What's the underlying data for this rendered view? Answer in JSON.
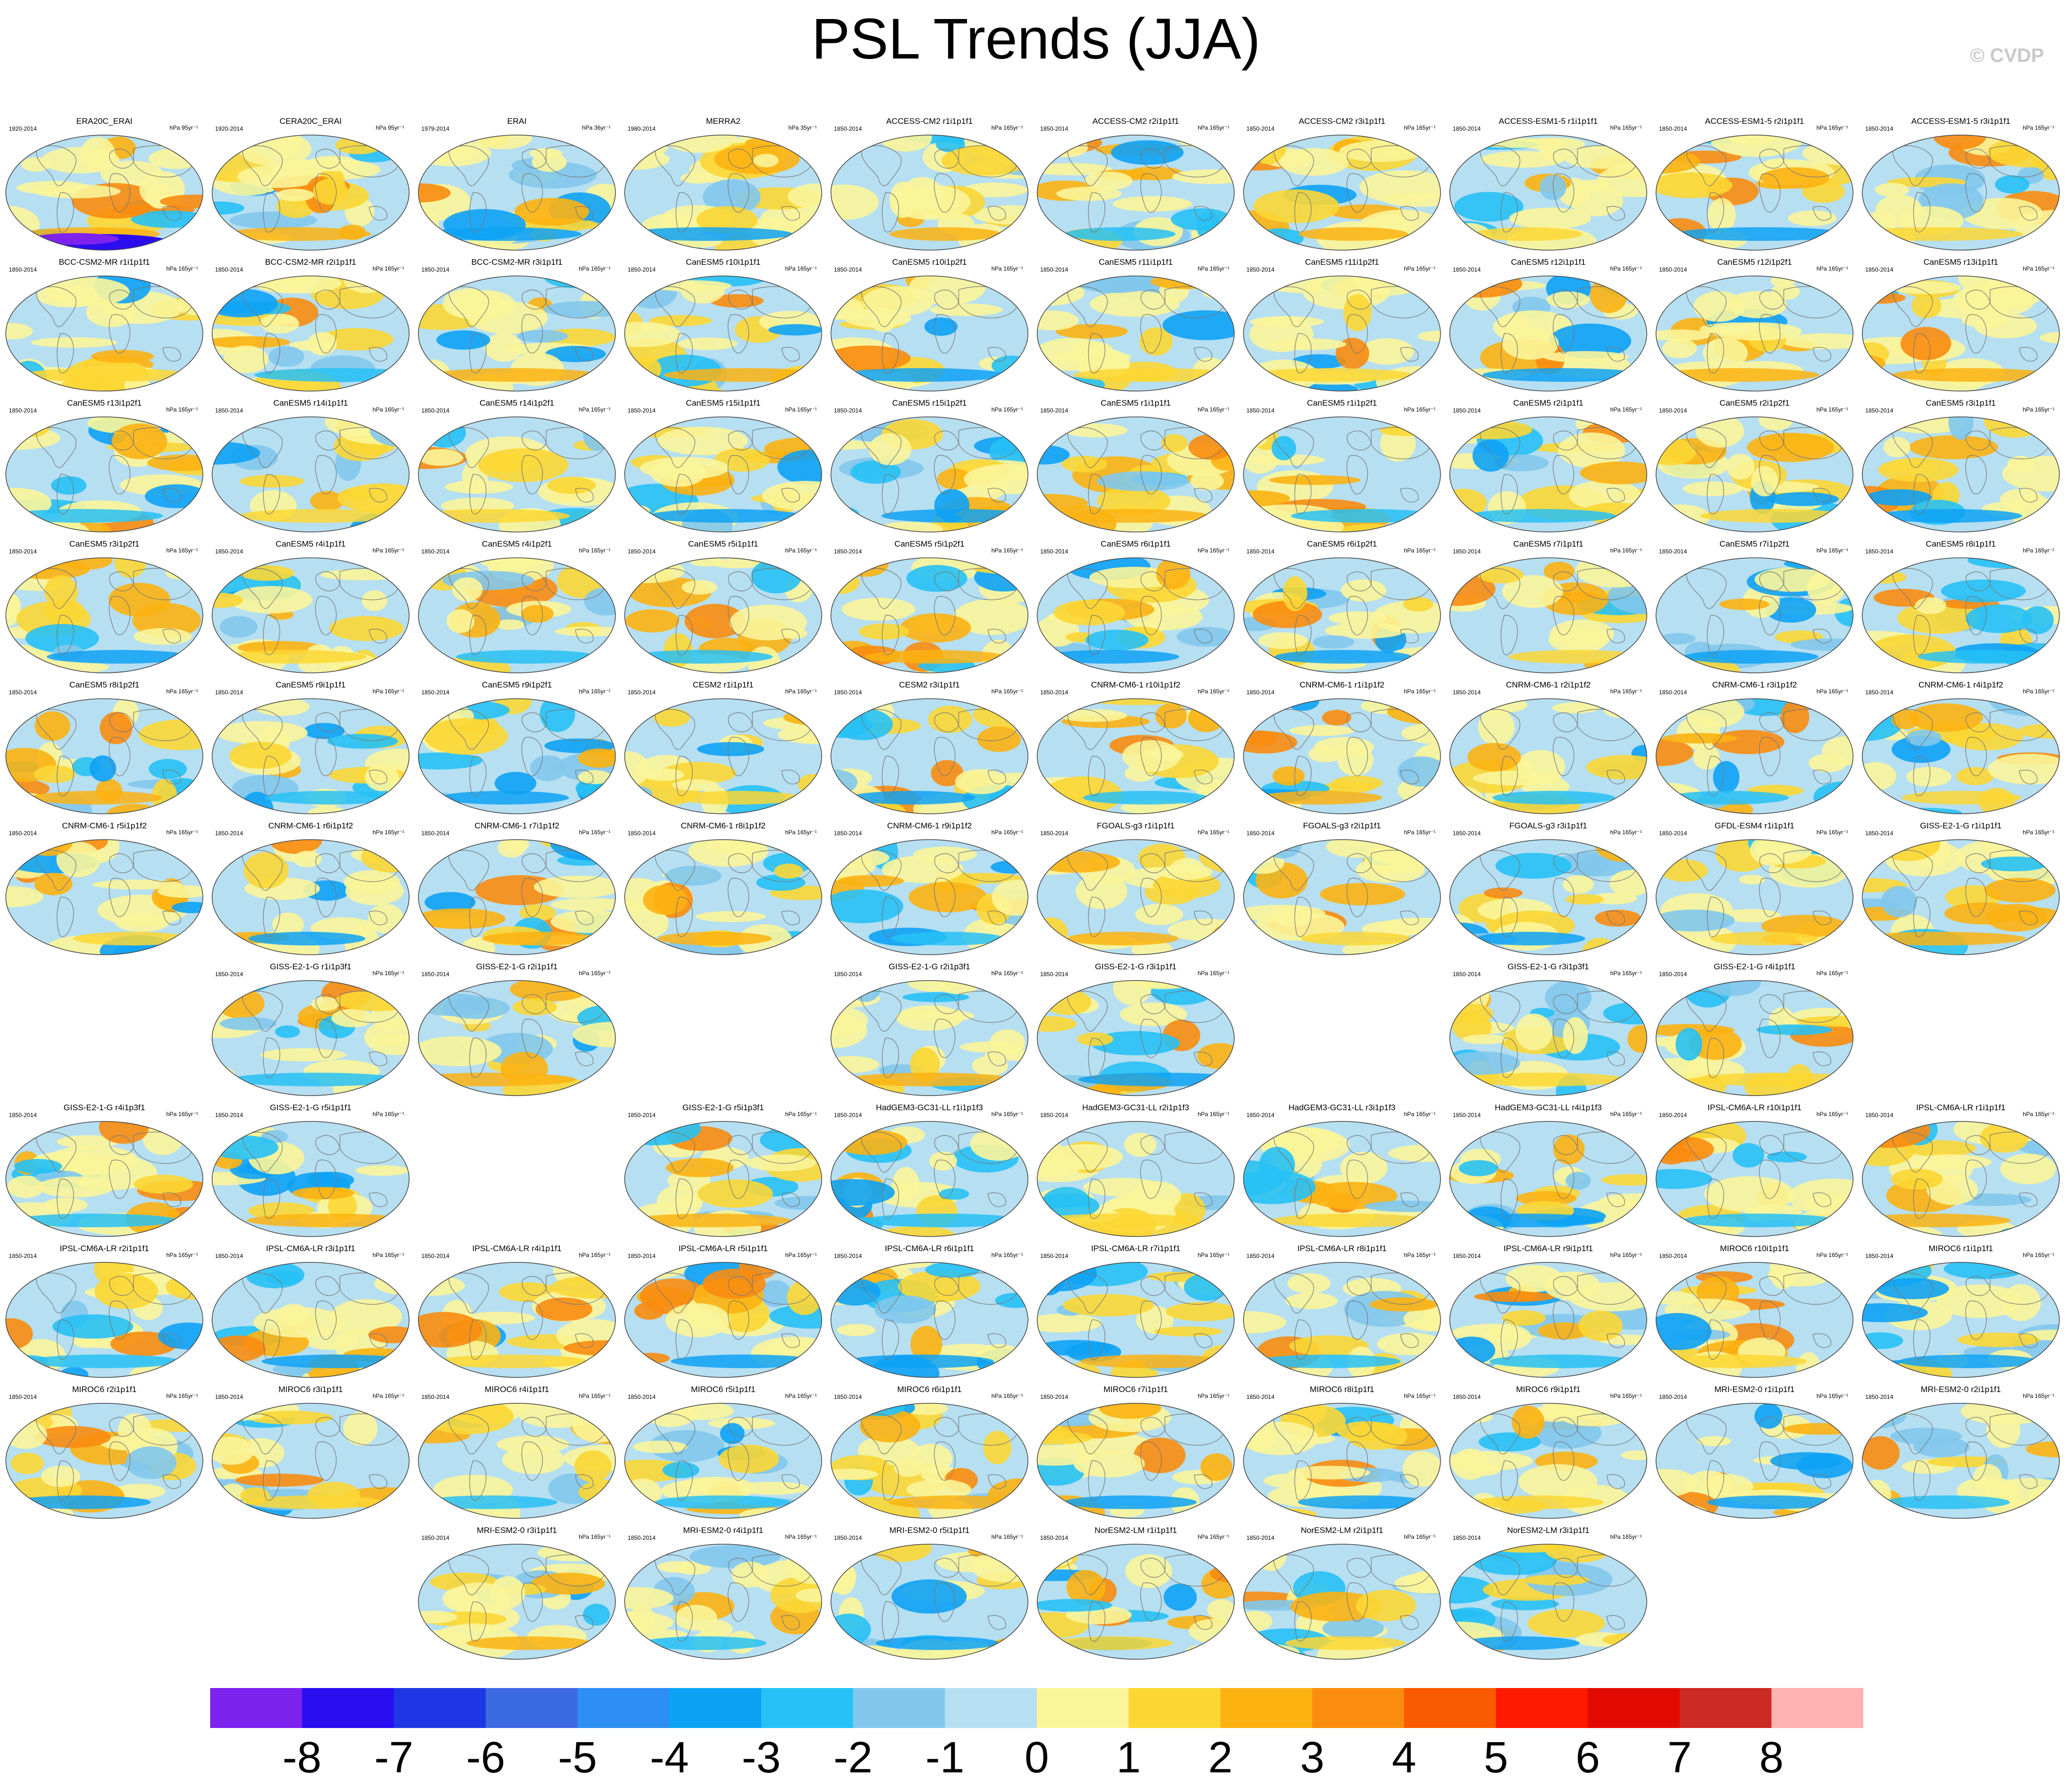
{
  "title": "PSL Trends (JJA)",
  "watermark": "© CVDP",
  "colors": {
    "colorbar": [
      "#7e22ee",
      "#2a0ef0",
      "#1e37e6",
      "#3c6ae0",
      "#2d8ef3",
      "#0ea2f5",
      "#27c1f5",
      "#82c8ec",
      "#b6dff1",
      "#fbf59a",
      "#fcd734",
      "#fcb312",
      "#fa8c10",
      "#fa5a00",
      "#ff1a00",
      "#e20a00",
      "#cc2a24",
      "#ffb3b0"
    ]
  },
  "colorbar_labels": [
    "-8",
    "-7",
    "-6",
    "-5",
    "-4",
    "-3",
    "-2",
    "-1",
    "0",
    "1",
    "2",
    "3",
    "4",
    "5",
    "6",
    "7",
    "8"
  ],
  "chart_data": {
    "type": "heatmap",
    "title": "PSL Trends (JJA)",
    "variable": "PSL",
    "season": "JJA",
    "units": "hPa",
    "colorbar": {
      "levels": [
        -8,
        -7,
        -6,
        -5,
        -4,
        -3,
        -2,
        -1,
        0,
        1,
        2,
        3,
        4,
        5,
        6,
        7,
        8
      ],
      "orientation": "horizontal",
      "placement": "bottom"
    },
    "panels": [
      {
        "title": "ERA20C_ERAI",
        "years": "1920-2014",
        "units": "hPa 95yr⁻¹",
        "row": 0,
        "col": 0
      },
      {
        "title": "CERA20C_ERAI",
        "years": "1920-2014",
        "units": "hPa 95yr⁻¹",
        "row": 0,
        "col": 1
      },
      {
        "title": "ERAI",
        "years": "1979-2014",
        "units": "hPa 36yr⁻¹",
        "row": 0,
        "col": 2
      },
      {
        "title": "MERRA2",
        "years": "1980-2014",
        "units": "hPa 35yr⁻¹",
        "row": 0,
        "col": 3
      },
      {
        "title": "ACCESS-CM2 r1i1p1f1",
        "years": "1850-2014",
        "units": "hPa 165yr⁻¹",
        "row": 0,
        "col": 4
      },
      {
        "title": "ACCESS-CM2 r2i1p1f1",
        "years": "1850-2014",
        "units": "hPa 165yr⁻¹",
        "row": 0,
        "col": 5
      },
      {
        "title": "ACCESS-CM2 r3i1p1f1",
        "years": "1850-2014",
        "units": "hPa 165yr⁻¹",
        "row": 0,
        "col": 6
      },
      {
        "title": "ACCESS-ESM1-5 r1i1p1f1",
        "years": "1850-2014",
        "units": "hPa 165yr⁻¹",
        "row": 0,
        "col": 7
      },
      {
        "title": "ACCESS-ESM1-5 r2i1p1f1",
        "years": "1850-2014",
        "units": "hPa 165yr⁻¹",
        "row": 0,
        "col": 8
      },
      {
        "title": "ACCESS-ESM1-5 r3i1p1f1",
        "years": "1850-2014",
        "units": "hPa 165yr⁻¹",
        "row": 0,
        "col": 9
      },
      {
        "title": "BCC-CSM2-MR r1i1p1f1",
        "years": "1850-2014",
        "units": "hPa 165yr⁻¹",
        "row": 1,
        "col": 0
      },
      {
        "title": "BCC-CSM2-MR r2i1p1f1",
        "years": "1850-2014",
        "units": "hPa 165yr⁻¹",
        "row": 1,
        "col": 1
      },
      {
        "title": "BCC-CSM2-MR r3i1p1f1",
        "years": "1850-2014",
        "units": "hPa 165yr⁻¹",
        "row": 1,
        "col": 2
      },
      {
        "title": "CanESM5 r10i1p1f1",
        "years": "1850-2014",
        "units": "hPa 165yr⁻¹",
        "row": 1,
        "col": 3
      },
      {
        "title": "CanESM5 r10i1p2f1",
        "years": "1850-2014",
        "units": "hPa 165yr⁻¹",
        "row": 1,
        "col": 4
      },
      {
        "title": "CanESM5 r11i1p1f1",
        "years": "1850-2014",
        "units": "hPa 165yr⁻¹",
        "row": 1,
        "col": 5
      },
      {
        "title": "CanESM5 r11i1p2f1",
        "years": "1850-2014",
        "units": "hPa 165yr⁻¹",
        "row": 1,
        "col": 6
      },
      {
        "title": "CanESM5 r12i1p1f1",
        "years": "1850-2014",
        "units": "hPa 165yr⁻¹",
        "row": 1,
        "col": 7
      },
      {
        "title": "CanESM5 r12i1p2f1",
        "years": "1850-2014",
        "units": "hPa 165yr⁻¹",
        "row": 1,
        "col": 8
      },
      {
        "title": "CanESM5 r13i1p1f1",
        "years": "1850-2014",
        "units": "hPa 165yr⁻¹",
        "row": 1,
        "col": 9
      },
      {
        "title": "CanESM5 r13i1p2f1",
        "years": "1850-2014",
        "units": "hPa 165yr⁻¹",
        "row": 2,
        "col": 0
      },
      {
        "title": "CanESM5 r14i1p1f1",
        "years": "1850-2014",
        "units": "hPa 165yr⁻¹",
        "row": 2,
        "col": 1
      },
      {
        "title": "CanESM5 r14i1p2f1",
        "years": "1850-2014",
        "units": "hPa 165yr⁻¹",
        "row": 2,
        "col": 2
      },
      {
        "title": "CanESM5 r15i1p1f1",
        "years": "1850-2014",
        "units": "hPa 165yr⁻¹",
        "row": 2,
        "col": 3
      },
      {
        "title": "CanESM5 r15i1p2f1",
        "years": "1850-2014",
        "units": "hPa 165yr⁻¹",
        "row": 2,
        "col": 4
      },
      {
        "title": "CanESM5 r1i1p1f1",
        "years": "1850-2014",
        "units": "hPa 165yr⁻¹",
        "row": 2,
        "col": 5
      },
      {
        "title": "CanESM5 r1i1p2f1",
        "years": "1850-2014",
        "units": "hPa 165yr⁻¹",
        "row": 2,
        "col": 6
      },
      {
        "title": "CanESM5 r2i1p1f1",
        "years": "1850-2014",
        "units": "hPa 165yr⁻¹",
        "row": 2,
        "col": 7
      },
      {
        "title": "CanESM5 r2i1p2f1",
        "years": "1850-2014",
        "units": "hPa 165yr⁻¹",
        "row": 2,
        "col": 8
      },
      {
        "title": "CanESM5 r3i1p1f1",
        "years": "1850-2014",
        "units": "hPa 165yr⁻¹",
        "row": 2,
        "col": 9
      },
      {
        "title": "CanESM5 r3i1p2f1",
        "years": "1850-2014",
        "units": "hPa 165yr⁻¹",
        "row": 3,
        "col": 0
      },
      {
        "title": "CanESM5 r4i1p1f1",
        "years": "1850-2014",
        "units": "hPa 165yr⁻¹",
        "row": 3,
        "col": 1
      },
      {
        "title": "CanESM5 r4i1p2f1",
        "years": "1850-2014",
        "units": "hPa 165yr⁻¹",
        "row": 3,
        "col": 2
      },
      {
        "title": "CanESM5 r5i1p1f1",
        "years": "1850-2014",
        "units": "hPa 165yr⁻¹",
        "row": 3,
        "col": 3
      },
      {
        "title": "CanESM5 r5i1p2f1",
        "years": "1850-2014",
        "units": "hPa 165yr⁻¹",
        "row": 3,
        "col": 4
      },
      {
        "title": "CanESM5 r6i1p1f1",
        "years": "1850-2014",
        "units": "hPa 165yr⁻¹",
        "row": 3,
        "col": 5
      },
      {
        "title": "CanESM5 r6i1p2f1",
        "years": "1850-2014",
        "units": "hPa 165yr⁻¹",
        "row": 3,
        "col": 6
      },
      {
        "title": "CanESM5 r7i1p1f1",
        "years": "1850-2014",
        "units": "hPa 165yr⁻¹",
        "row": 3,
        "col": 7
      },
      {
        "title": "CanESM5 r7i1p2f1",
        "years": "1850-2014",
        "units": "hPa 165yr⁻¹",
        "row": 3,
        "col": 8
      },
      {
        "title": "CanESM5 r8i1p1f1",
        "years": "1850-2014",
        "units": "hPa 165yr⁻¹",
        "row": 3,
        "col": 9
      },
      {
        "title": "CanESM5 r8i1p2f1",
        "years": "1850-2014",
        "units": "hPa 165yr⁻¹",
        "row": 4,
        "col": 0
      },
      {
        "title": "CanESM5 r9i1p1f1",
        "years": "1850-2014",
        "units": "hPa 165yr⁻¹",
        "row": 4,
        "col": 1
      },
      {
        "title": "CanESM5 r9i1p2f1",
        "years": "1850-2014",
        "units": "hPa 165yr⁻¹",
        "row": 4,
        "col": 2
      },
      {
        "title": "CESM2 r1i1p1f1",
        "years": "1850-2014",
        "units": "hPa 165yr⁻¹",
        "row": 4,
        "col": 3
      },
      {
        "title": "CESM2 r3i1p1f1",
        "years": "1850-2014",
        "units": "hPa 165yr⁻¹",
        "row": 4,
        "col": 4
      },
      {
        "title": "CNRM-CM6-1 r10i1p1f2",
        "years": "1850-2014",
        "units": "hPa 165yr⁻¹",
        "row": 4,
        "col": 5
      },
      {
        "title": "CNRM-CM6-1 r1i1p1f2",
        "years": "1850-2014",
        "units": "hPa 165yr⁻¹",
        "row": 4,
        "col": 6
      },
      {
        "title": "CNRM-CM6-1 r2i1p1f2",
        "years": "1850-2014",
        "units": "hPa 165yr⁻¹",
        "row": 4,
        "col": 7
      },
      {
        "title": "CNRM-CM6-1 r3i1p1f2",
        "years": "1850-2014",
        "units": "hPa 165yr⁻¹",
        "row": 4,
        "col": 8
      },
      {
        "title": "CNRM-CM6-1 r4i1p1f2",
        "years": "1850-2014",
        "units": "hPa 165yr⁻¹",
        "row": 4,
        "col": 9
      },
      {
        "title": "CNRM-CM6-1 r5i1p1f2",
        "years": "1850-2014",
        "units": "hPa 165yr⁻¹",
        "row": 5,
        "col": 0
      },
      {
        "title": "CNRM-CM6-1 r6i1p1f2",
        "years": "1850-2014",
        "units": "hPa 165yr⁻¹",
        "row": 5,
        "col": 1
      },
      {
        "title": "CNRM-CM6-1 r7i1p1f2",
        "years": "1850-2014",
        "units": "hPa 165yr⁻¹",
        "row": 5,
        "col": 2
      },
      {
        "title": "CNRM-CM6-1 r8i1p1f2",
        "years": "1850-2014",
        "units": "hPa 165yr⁻¹",
        "row": 5,
        "col": 3
      },
      {
        "title": "CNRM-CM6-1 r9i1p1f2",
        "years": "1850-2014",
        "units": "hPa 165yr⁻¹",
        "row": 5,
        "col": 4
      },
      {
        "title": "FGOALS-g3 r1i1p1f1",
        "years": "1850-2014",
        "units": "hPa 165yr⁻¹",
        "row": 5,
        "col": 5
      },
      {
        "title": "FGOALS-g3 r2i1p1f1",
        "years": "1850-2014",
        "units": "hPa 165yr⁻¹",
        "row": 5,
        "col": 6
      },
      {
        "title": "FGOALS-g3 r3i1p1f1",
        "years": "1850-2014",
        "units": "hPa 165yr⁻¹",
        "row": 5,
        "col": 7
      },
      {
        "title": "GFDL-ESM4 r1i1p1f1",
        "years": "1850-2014",
        "units": "hPa 165yr⁻¹",
        "row": 5,
        "col": 8
      },
      {
        "title": "GISS-E2-1-G r1i1p1f1",
        "years": "1850-2014",
        "units": "hPa 165yr⁻¹",
        "row": 5,
        "col": 9
      },
      {
        "title": "GISS-E2-1-G r1i1p3f1",
        "years": "1850-2014",
        "units": "hPa 165yr⁻¹",
        "row": 6,
        "col": 1
      },
      {
        "title": "GISS-E2-1-G r2i1p1f1",
        "years": "1850-2014",
        "units": "hPa 165yr⁻¹",
        "row": 6,
        "col": 2
      },
      {
        "title": "GISS-E2-1-G r2i1p3f1",
        "years": "1850-2014",
        "units": "hPa 165yr⁻¹",
        "row": 6,
        "col": 4
      },
      {
        "title": "GISS-E2-1-G r3i1p1f1",
        "years": "1850-2014",
        "units": "hPa 165yr⁻¹",
        "row": 6,
        "col": 5
      },
      {
        "title": "GISS-E2-1-G r3i1p3f1",
        "years": "1850-2014",
        "units": "hPa 165yr⁻¹",
        "row": 6,
        "col": 7
      },
      {
        "title": "GISS-E2-1-G r4i1p1f1",
        "years": "1850-2014",
        "units": "hPa 165yr⁻¹",
        "row": 6,
        "col": 8
      },
      {
        "title": "GISS-E2-1-G r4i1p3f1",
        "years": "1850-2014",
        "units": "hPa 165yr⁻¹",
        "row": 7,
        "col": 0
      },
      {
        "title": "GISS-E2-1-G r5i1p1f1",
        "years": "1850-2014",
        "units": "hPa 165yr⁻¹",
        "row": 7,
        "col": 1
      },
      {
        "title": "GISS-E2-1-G r5i1p3f1",
        "years": "1850-2014",
        "units": "hPa 165yr⁻¹",
        "row": 7,
        "col": 3
      },
      {
        "title": "HadGEM3-GC31-LL r1i1p1f3",
        "years": "1850-2014",
        "units": "hPa 165yr⁻¹",
        "row": 7,
        "col": 4
      },
      {
        "title": "HadGEM3-GC31-LL r2i1p1f3",
        "years": "1850-2014",
        "units": "hPa 165yr⁻¹",
        "row": 7,
        "col": 5
      },
      {
        "title": "HadGEM3-GC31-LL r3i1p1f3",
        "years": "1850-2014",
        "units": "hPa 165yr⁻¹",
        "row": 7,
        "col": 6
      },
      {
        "title": "HadGEM3-GC31-LL r4i1p1f3",
        "years": "1850-2014",
        "units": "hPa 165yr⁻¹",
        "row": 7,
        "col": 7
      },
      {
        "title": "IPSL-CM6A-LR r10i1p1f1",
        "years": "1850-2014",
        "units": "hPa 165yr⁻¹",
        "row": 7,
        "col": 8
      },
      {
        "title": "IPSL-CM6A-LR r1i1p1f1",
        "years": "1850-2014",
        "units": "hPa 165yr⁻¹",
        "row": 7,
        "col": 9
      },
      {
        "title": "IPSL-CM6A-LR r2i1p1f1",
        "years": "1850-2014",
        "units": "hPa 165yr⁻¹",
        "row": 8,
        "col": 0
      },
      {
        "title": "IPSL-CM6A-LR r3i1p1f1",
        "years": "1850-2014",
        "units": "hPa 165yr⁻¹",
        "row": 8,
        "col": 1
      },
      {
        "title": "IPSL-CM6A-LR r4i1p1f1",
        "years": "1850-2014",
        "units": "hPa 165yr⁻¹",
        "row": 8,
        "col": 2
      },
      {
        "title": "IPSL-CM6A-LR r5i1p1f1",
        "years": "1850-2014",
        "units": "hPa 165yr⁻¹",
        "row": 8,
        "col": 3
      },
      {
        "title": "IPSL-CM6A-LR r6i1p1f1",
        "years": "1850-2014",
        "units": "hPa 165yr⁻¹",
        "row": 8,
        "col": 4
      },
      {
        "title": "IPSL-CM6A-LR r7i1p1f1",
        "years": "1850-2014",
        "units": "hPa 165yr⁻¹",
        "row": 8,
        "col": 5
      },
      {
        "title": "IPSL-CM6A-LR r8i1p1f1",
        "years": "1850-2014",
        "units": "hPa 165yr⁻¹",
        "row": 8,
        "col": 6
      },
      {
        "title": "IPSL-CM6A-LR r9i1p1f1",
        "years": "1850-2014",
        "units": "hPa 165yr⁻¹",
        "row": 8,
        "col": 7
      },
      {
        "title": "MIROC6 r10i1p1f1",
        "years": "1850-2014",
        "units": "hPa 165yr⁻¹",
        "row": 8,
        "col": 8
      },
      {
        "title": "MIROC6 r1i1p1f1",
        "years": "1850-2014",
        "units": "hPa 165yr⁻¹",
        "row": 8,
        "col": 9
      },
      {
        "title": "MIROC6 r2i1p1f1",
        "years": "1850-2014",
        "units": "hPa 165yr⁻¹",
        "row": 9,
        "col": 0
      },
      {
        "title": "MIROC6 r3i1p1f1",
        "years": "1850-2014",
        "units": "hPa 165yr⁻¹",
        "row": 9,
        "col": 1
      },
      {
        "title": "MIROC6 r4i1p1f1",
        "years": "1850-2014",
        "units": "hPa 165yr⁻¹",
        "row": 9,
        "col": 2
      },
      {
        "title": "MIROC6 r5i1p1f1",
        "years": "1850-2014",
        "units": "hPa 165yr⁻¹",
        "row": 9,
        "col": 3
      },
      {
        "title": "MIROC6 r6i1p1f1",
        "years": "1850-2014",
        "units": "hPa 165yr⁻¹",
        "row": 9,
        "col": 4
      },
      {
        "title": "MIROC6 r7i1p1f1",
        "years": "1850-2014",
        "units": "hPa 165yr⁻¹",
        "row": 9,
        "col": 5
      },
      {
        "title": "MIROC6 r8i1p1f1",
        "years": "1850-2014",
        "units": "hPa 165yr⁻¹",
        "row": 9,
        "col": 6
      },
      {
        "title": "MIROC6 r9i1p1f1",
        "years": "1850-2014",
        "units": "hPa 165yr⁻¹",
        "row": 9,
        "col": 7
      },
      {
        "title": "MRI-ESM2-0 r1i1p1f1",
        "years": "1850-2014",
        "units": "hPa 165yr⁻¹",
        "row": 9,
        "col": 8
      },
      {
        "title": "MRI-ESM2-0 r2i1p1f1",
        "years": "1850-2014",
        "units": "hPa 165yr⁻¹",
        "row": 9,
        "col": 9
      },
      {
        "title": "MRI-ESM2-0 r3i1p1f1",
        "years": "1850-2014",
        "units": "hPa 165yr⁻¹",
        "row": 10,
        "col": 2
      },
      {
        "title": "MRI-ESM2-0 r4i1p1f1",
        "years": "1850-2014",
        "units": "hPa 165yr⁻¹",
        "row": 10,
        "col": 3
      },
      {
        "title": "MRI-ESM2-0 r5i1p1f1",
        "years": "1850-2014",
        "units": "hPa 165yr⁻¹",
        "row": 10,
        "col": 4
      },
      {
        "title": "NorESM2-LM r1i1p1f1",
        "years": "1850-2014",
        "units": "hPa 165yr⁻¹",
        "row": 10,
        "col": 5
      },
      {
        "title": "NorESM2-LM r2i1p1f1",
        "years": "1850-2014",
        "units": "hPa 165yr⁻¹",
        "row": 10,
        "col": 6
      },
      {
        "title": "NorESM2-LM r3i1p1f1",
        "years": "1850-2014",
        "units": "hPa 165yr⁻¹",
        "row": 10,
        "col": 7
      }
    ]
  }
}
